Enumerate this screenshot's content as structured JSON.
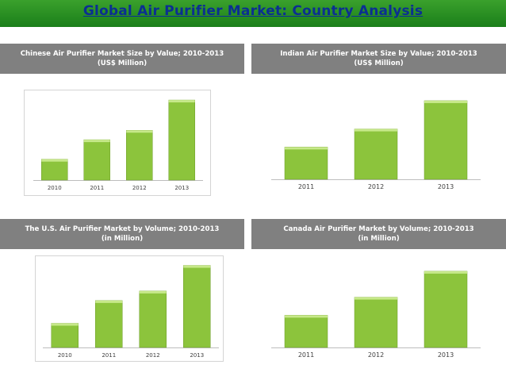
{
  "title": "Global Air Purifier Market: Country Analysis",
  "colors": {
    "title_bar": "#2e8f22",
    "title_text": "#0b2f92",
    "panel_header": "#808080",
    "bar_fill": "#8cc43c",
    "bar_top": "#c7e98a"
  },
  "chart_data": [
    {
      "type": "bar",
      "title": "Chinese Air Purifier Market Size by Value; 2010-2013",
      "subtitle": "(US$ Million)",
      "categories": [
        "2010",
        "2011",
        "2012",
        "2013"
      ],
      "values": [
        31,
        60,
        74,
        119
      ],
      "ylim": [
        0,
        125
      ],
      "bordered": true
    },
    {
      "type": "bar",
      "title": "Indian Air Purifier Market Size by Value; 2010-2013",
      "subtitle": "(US$ Million)",
      "categories": [
        "2011",
        "2012",
        "2013"
      ],
      "values": [
        41,
        64,
        100
      ],
      "ylim": [
        0,
        105
      ],
      "bordered": false
    },
    {
      "type": "bar",
      "title": "The U.S. Air Purifier Market by Volume; 2010-2013",
      "subtitle": "(in Million)",
      "categories": [
        "2010",
        "2011",
        "2012",
        "2013"
      ],
      "values": [
        33,
        64,
        77,
        112
      ],
      "ylim": [
        0,
        118
      ],
      "bordered": true
    },
    {
      "type": "bar",
      "title": "Canada Air Purifier Market by Volume; 2010-2013",
      "subtitle": "(in Million)",
      "categories": [
        "2011",
        "2012",
        "2013"
      ],
      "values": [
        41,
        64,
        97
      ],
      "ylim": [
        0,
        105
      ],
      "bordered": false
    }
  ]
}
